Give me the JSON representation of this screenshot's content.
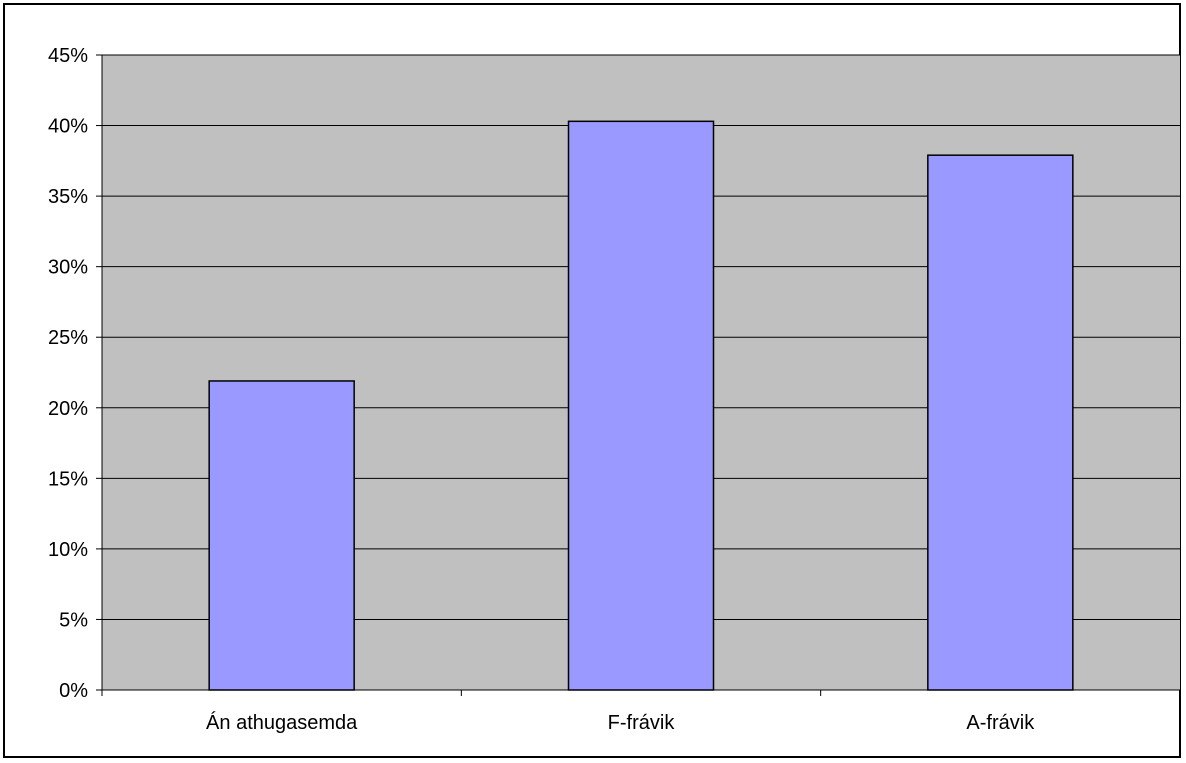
{
  "chart_data": {
    "type": "bar",
    "categories": [
      "Án athugasemda",
      "F-frávik",
      "A-frávik"
    ],
    "values": [
      21.9,
      40.3,
      37.9
    ],
    "unit": "%",
    "ylim": [
      0,
      45
    ],
    "yticks": [
      "0%",
      "5%",
      "10%",
      "15%",
      "20%",
      "25%",
      "30%",
      "35%",
      "40%",
      "45%"
    ],
    "ytick_values": [
      0,
      5,
      10,
      15,
      20,
      25,
      30,
      35,
      40,
      45
    ],
    "grid": true,
    "legend": "none",
    "colors": {
      "bar_fill": "#9999ff",
      "bar_stroke": "#000000",
      "plot_background": "#c0c0c0",
      "gridline": "#000000"
    }
  }
}
